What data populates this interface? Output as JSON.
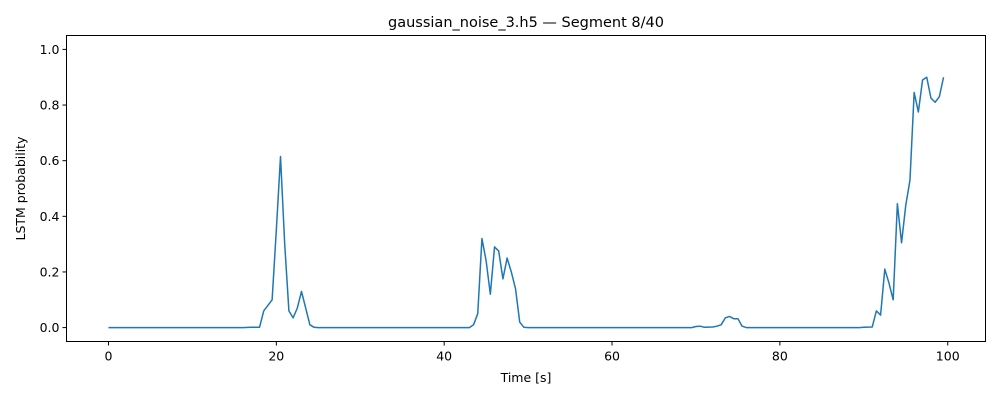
{
  "chart_data": {
    "type": "line",
    "title": "gaussian_noise_3.h5 — Segment 8/40",
    "xlabel": "Time [s]",
    "ylabel": "LSTM probability",
    "xlim": [
      -5,
      104.5
    ],
    "ylim": [
      -0.05,
      1.05
    ],
    "xticks": [
      0,
      20,
      40,
      60,
      80,
      100
    ],
    "yticks": [
      0.0,
      0.2,
      0.4,
      0.6,
      0.8,
      1.0
    ],
    "xtick_labels": [
      "0",
      "20",
      "40",
      "60",
      "80",
      "100"
    ],
    "ytick_labels": [
      "0.0",
      "0.2",
      "0.4",
      "0.6",
      "0.8",
      "1.0"
    ],
    "grid": false,
    "series": [
      {
        "color": "#1f77b4",
        "x": [
          0,
          2,
          4,
          6,
          8,
          10,
          12,
          14,
          16,
          17,
          17.5,
          18,
          18.5,
          19.5,
          20,
          20.5,
          21,
          21.5,
          22,
          22.5,
          23,
          23.5,
          24,
          24.5,
          25,
          26,
          28,
          30,
          32,
          34,
          36,
          38,
          40,
          42,
          43,
          43.5,
          44,
          44.5,
          45,
          45.5,
          46,
          46.5,
          47,
          47.5,
          48,
          48.5,
          49,
          49.5,
          50,
          52,
          54,
          56,
          58,
          60,
          62,
          64,
          66,
          68,
          69.5,
          70,
          70.5,
          71,
          72,
          72.5,
          73,
          73.5,
          74,
          74.5,
          75,
          75.5,
          76,
          77,
          78,
          80,
          82,
          84,
          86,
          88,
          89.5,
          90,
          91,
          91.5,
          92,
          92.5,
          93,
          93.5,
          94,
          94.5,
          95,
          95.5,
          96,
          96.5,
          97,
          97.5,
          98,
          98.5,
          99,
          99.5
        ],
        "y": [
          0.0,
          0.0,
          0.0,
          0.0,
          0.0,
          0.0,
          0.0,
          0.0,
          0.0,
          0.001,
          0.001,
          0.001,
          0.06,
          0.1,
          0.35,
          0.615,
          0.3,
          0.06,
          0.035,
          0.07,
          0.13,
          0.07,
          0.01,
          0.001,
          0.0,
          0.0,
          0.0,
          0.0,
          0.0,
          0.0,
          0.0,
          0.0,
          0.0,
          0.0,
          0.0,
          0.01,
          0.05,
          0.32,
          0.24,
          0.12,
          0.29,
          0.275,
          0.175,
          0.25,
          0.2,
          0.14,
          0.02,
          0.001,
          0.0,
          0.0,
          0.0,
          0.0,
          0.0,
          0.0,
          0.0,
          0.0,
          0.0,
          0.0,
          0.0,
          0.004,
          0.005,
          0.001,
          0.002,
          0.005,
          0.01,
          0.035,
          0.04,
          0.032,
          0.032,
          0.005,
          0.0,
          0.0,
          0.0,
          0.0,
          0.0,
          0.0,
          0.0,
          0.0,
          0.0,
          0.001,
          0.002,
          0.06,
          0.045,
          0.21,
          0.16,
          0.1,
          0.445,
          0.305,
          0.44,
          0.53,
          0.845,
          0.775,
          0.89,
          0.9,
          0.825,
          0.81,
          0.83,
          0.9
        ]
      }
    ]
  }
}
